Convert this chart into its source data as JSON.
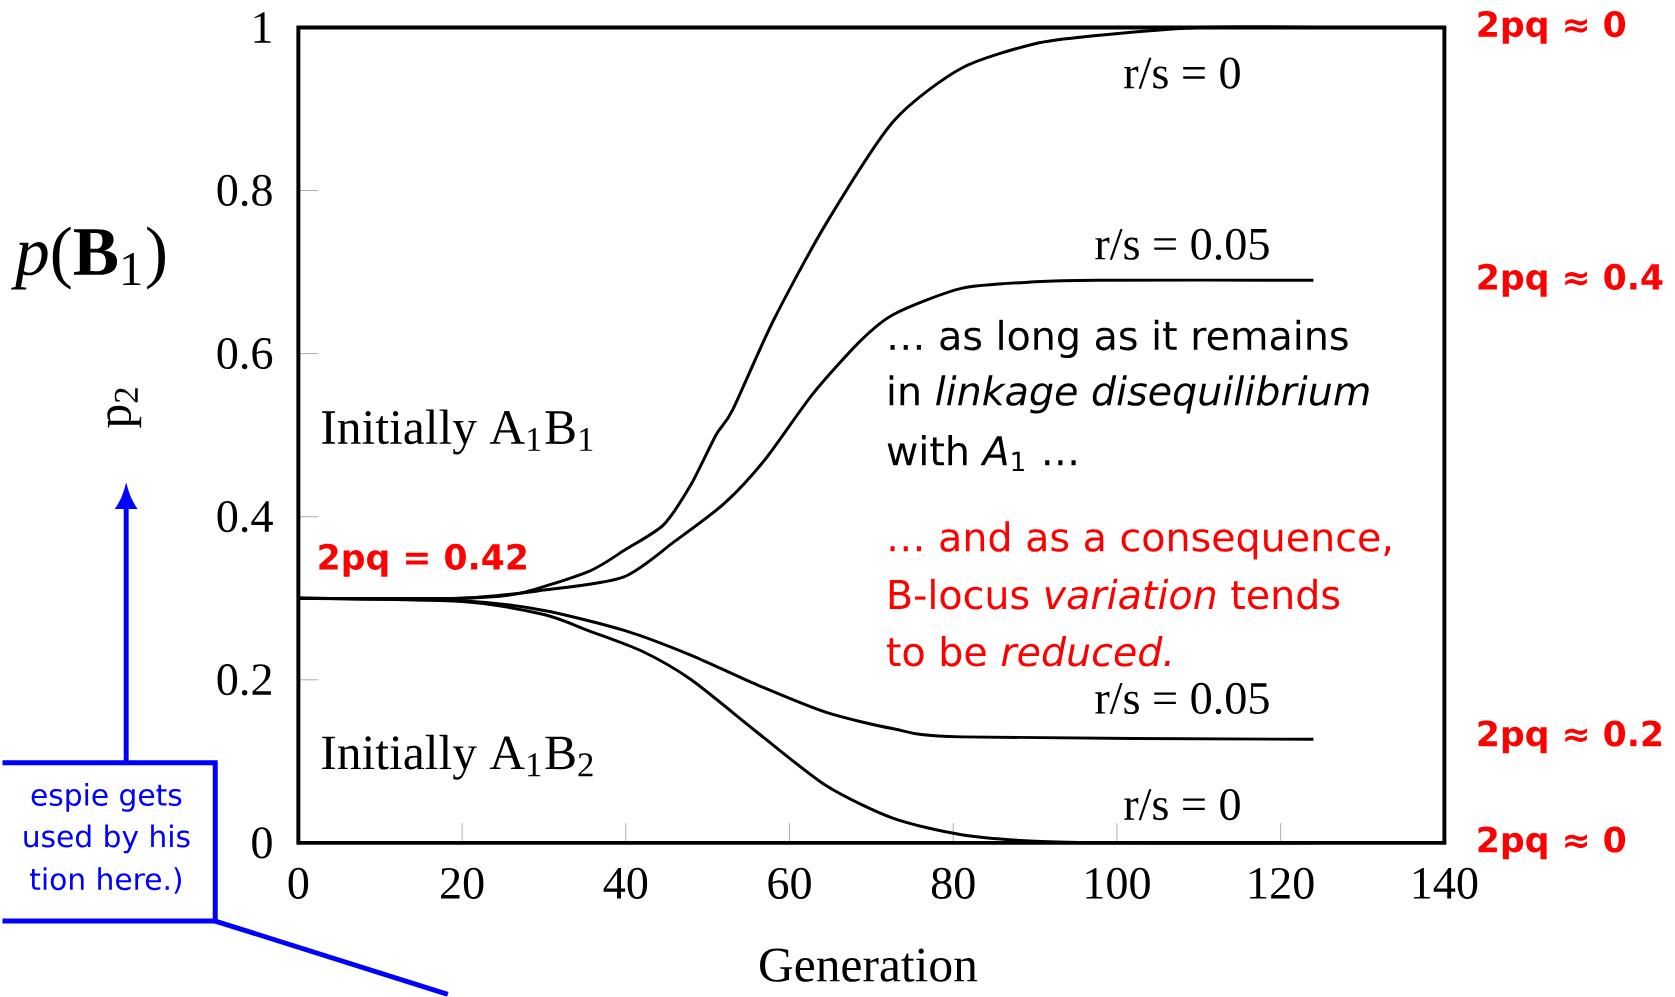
{
  "chart_data": {
    "type": "line",
    "xlabel": "Generation",
    "ylabel": "p$_{2}$",
    "xlim": [
      0,
      140
    ],
    "ylim": [
      0,
      1
    ],
    "xticks": [
      0,
      20,
      40,
      60,
      80,
      100,
      120,
      140
    ],
    "yticks": [
      0,
      0.2,
      0.4,
      0.6,
      0.8,
      1
    ],
    "series": [
      {
        "name": "r/s = 0",
        "color": "#000000",
        "x": [
          0,
          20,
          27,
          35.5,
          40,
          44.6,
          48,
          51,
          53,
          58,
          64.5,
          72.7,
          81,
          90,
          97.5,
          110,
          124
        ],
        "values": [
          0.3,
          0.3,
          0.306,
          0.333,
          0.36,
          0.39,
          0.44,
          0.5,
          0.53,
          0.64,
          0.76,
          0.885,
          0.95,
          0.98,
          0.99,
          1.0,
          1.0
        ]
      },
      {
        "name": "r/s = 0.05",
        "color": "#000000",
        "x": [
          0,
          20,
          30,
          39.7,
          46,
          52,
          57,
          62.8,
          68.6,
          72.7,
          81,
          90,
          97.5,
          124
        ],
        "values": [
          0.3,
          0.3,
          0.31,
          0.326,
          0.37,
          0.416,
          0.47,
          0.55,
          0.615,
          0.648,
          0.68,
          0.688,
          0.69,
          0.69
        ]
      },
      {
        "name": "r/s = 0.05",
        "color": "#000000",
        "x": [
          0,
          20,
          30,
          40,
          48,
          56,
          64.5,
          72.7,
          81,
          124
        ],
        "values": [
          0.3,
          0.297,
          0.285,
          0.26,
          0.23,
          0.194,
          0.16,
          0.14,
          0.13,
          0.127
        ]
      },
      {
        "name": "r/s = 0",
        "color": "#000000",
        "x": [
          0,
          20,
          30,
          35.5,
          42,
          48,
          56,
          64.5,
          72.7,
          81,
          90,
          100,
          124
        ],
        "values": [
          0.3,
          0.296,
          0.28,
          0.26,
          0.235,
          0.2,
          0.136,
          0.07,
          0.03,
          0.01,
          0.002,
          0,
          0
        ]
      }
    ],
    "annotations": [
      "2pq = 0.42",
      "2pq ≈ 0",
      "2pq ≈ 0.4",
      "2pq ≈ 0.2",
      "2pq ≈ 0",
      "Initially A$_{1}$B$_{1}$",
      "Initially A$_{1}$B$_{2}$",
      "… as long as it remains",
      "in *linkage disequilibrium*",
      "with *A*$_{1}$ …",
      "… and as a consequence,",
      "B-locus *variation* tends",
      "to be *reduced.*",
      "*p*(**B**$_{1}$)",
      "espie gets",
      "used by his",
      "tion here.)"
    ]
  }
}
